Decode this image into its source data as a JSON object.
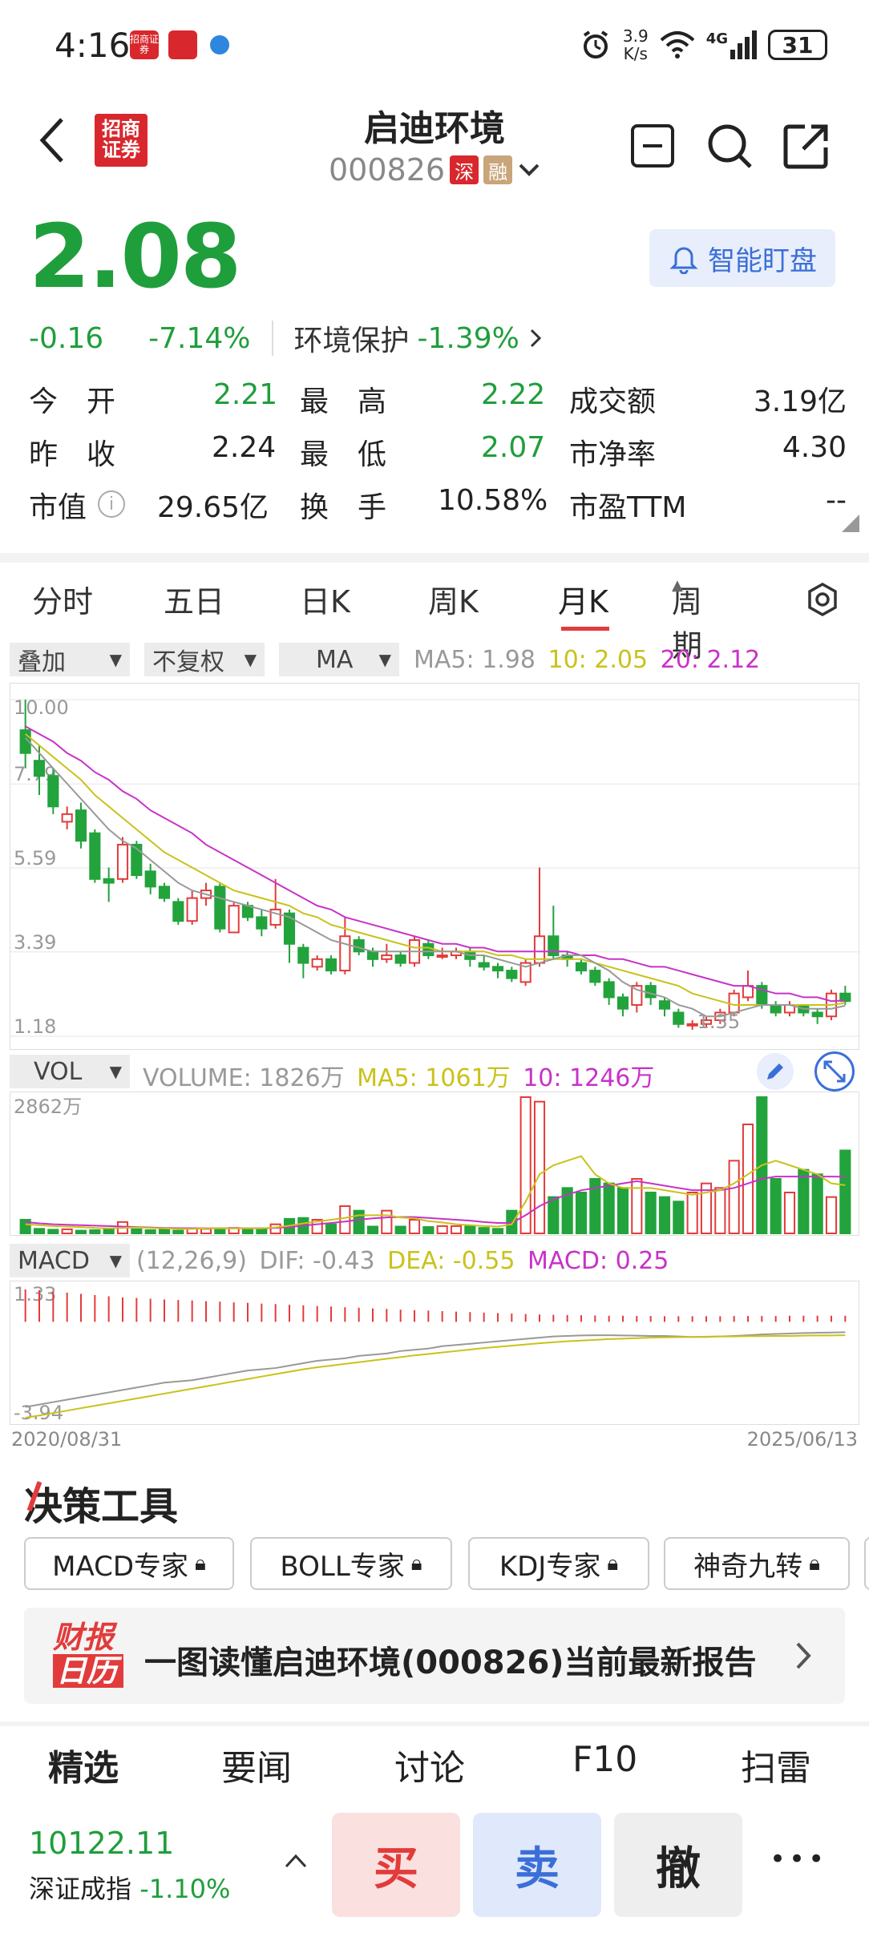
{
  "status_bar": {
    "time": "4:16",
    "app_icon_1": "招商证券",
    "app_icon_2": "app",
    "net_speed_top": "3.9",
    "net_speed_unit": "K/s",
    "network": "4G",
    "battery": "31"
  },
  "nav": {
    "title": "启迪环境",
    "code": "000826",
    "tag_sz": "深",
    "tag_margin": "融"
  },
  "quote": {
    "price": "2.08",
    "change": "-0.16",
    "change_pct": "-7.14%",
    "sector": "环境保护",
    "sector_pct": "-1.39%",
    "watch_label": "智能盯盘"
  },
  "stats": {
    "row1": {
      "l1": "今　开",
      "v1": "2.21",
      "l2": "最　高",
      "v2": "2.22",
      "l3": "成交额",
      "v3": "3.19亿"
    },
    "row2": {
      "l1": "昨　收",
      "v1": "2.24",
      "l2": "最　低",
      "v2": "2.07",
      "l3": "市净率",
      "v3": "4.30"
    },
    "row3": {
      "l1": "市值",
      "v1": "29.65亿",
      "l2": "换　手",
      "v2": "10.58%",
      "l3": "市盈TTM",
      "v3": "--"
    }
  },
  "tabs": [
    "分时",
    "五日",
    "日K",
    "周K",
    "月K",
    "周期"
  ],
  "active_tab": "月K",
  "chips": {
    "overlay": "叠加",
    "fq": "不复权",
    "ma": "MA",
    "vol": "VOL",
    "macd": "MACD"
  },
  "ma_legend": {
    "ma5": "MA5: 1.98",
    "ma10": "10: 2.05",
    "ma20": "20: 2.12"
  },
  "vol_legend": {
    "volume": "VOLUME: 1826万",
    "ma5": "MA5: 1061万",
    "ma10": "10: 1246万"
  },
  "macd_legend": {
    "params": "(12,26,9)",
    "dif": "DIF: -0.43",
    "dea": "DEA: -0.55",
    "macd": "MACD: 0.25"
  },
  "chart_data": {
    "type": "candlestick",
    "y_ticks": [
      "10.00",
      "7.79",
      "5.59",
      "3.39",
      "1.18"
    ],
    "ylim": [
      1.18,
      10.0
    ],
    "min_label": "1.35",
    "vol_max_label": "2862万",
    "macd_top_label": "1.33",
    "macd_bottom_label": "-3.94",
    "x_start": "2020/08/31",
    "x_end": "2025/06/13",
    "candles": [
      [
        9.2,
        8.6,
        10.0,
        8.2
      ],
      [
        8.4,
        8.0,
        8.8,
        7.5
      ],
      [
        8.0,
        7.2,
        8.2,
        7.0
      ],
      [
        6.8,
        7.0,
        7.2,
        6.6
      ],
      [
        7.1,
        6.3,
        7.3,
        6.1
      ],
      [
        6.5,
        5.3,
        6.6,
        5.2
      ],
      [
        5.3,
        5.2,
        5.6,
        4.7
      ],
      [
        5.3,
        6.2,
        6.4,
        5.2
      ],
      [
        6.2,
        5.4,
        6.3,
        5.3
      ],
      [
        5.5,
        5.1,
        5.7,
        4.9
      ],
      [
        5.1,
        4.8,
        5.2,
        4.7
      ],
      [
        4.7,
        4.2,
        4.8,
        4.1
      ],
      [
        4.2,
        4.8,
        5.0,
        4.1
      ],
      [
        4.8,
        5.0,
        5.2,
        4.6
      ],
      [
        5.1,
        4.0,
        5.2,
        3.9
      ],
      [
        3.9,
        4.6,
        4.7,
        3.9
      ],
      [
        4.6,
        4.3,
        4.7,
        4.2
      ],
      [
        4.3,
        4.0,
        4.5,
        3.8
      ],
      [
        4.1,
        4.5,
        5.3,
        4.0
      ],
      [
        4.4,
        3.6,
        4.5,
        3.1
      ],
      [
        3.5,
        3.1,
        3.6,
        2.7
      ],
      [
        3.0,
        3.2,
        3.3,
        2.9
      ],
      [
        3.2,
        2.9,
        3.3,
        2.8
      ],
      [
        2.9,
        3.8,
        4.3,
        2.8
      ],
      [
        3.7,
        3.4,
        3.8,
        3.3
      ],
      [
        3.4,
        3.2,
        3.5,
        3.0
      ],
      [
        3.2,
        3.3,
        3.6,
        3.1
      ],
      [
        3.3,
        3.1,
        3.4,
        3.0
      ],
      [
        3.1,
        3.7,
        3.8,
        3.0
      ],
      [
        3.6,
        3.3,
        3.7,
        3.2
      ],
      [
        3.3,
        3.3,
        3.5,
        3.2
      ],
      [
        3.3,
        3.4,
        3.5,
        3.2
      ],
      [
        3.4,
        3.2,
        3.5,
        3.0
      ],
      [
        3.1,
        3.0,
        3.3,
        2.9
      ],
      [
        3.0,
        2.9,
        3.1,
        2.7
      ],
      [
        2.9,
        2.7,
        3.0,
        2.6
      ],
      [
        2.6,
        3.1,
        3.2,
        2.5
      ],
      [
        3.1,
        3.8,
        5.6,
        3.0
      ],
      [
        3.8,
        3.3,
        4.6,
        3.2
      ],
      [
        3.3,
        3.2,
        3.4,
        3.0
      ],
      [
        3.1,
        2.9,
        3.2,
        2.8
      ],
      [
        2.9,
        2.6,
        3.0,
        2.5
      ],
      [
        2.6,
        2.2,
        2.7,
        2.0
      ],
      [
        2.2,
        1.9,
        2.3,
        1.7
      ],
      [
        2.0,
        2.5,
        2.6,
        1.8
      ],
      [
        2.5,
        2.2,
        2.6,
        2.0
      ],
      [
        2.1,
        1.9,
        2.2,
        1.7
      ],
      [
        1.8,
        1.5,
        1.9,
        1.4
      ],
      [
        1.5,
        1.5,
        1.6,
        1.35
      ],
      [
        1.5,
        1.6,
        1.7,
        1.4
      ],
      [
        1.6,
        1.8,
        1.9,
        1.5
      ],
      [
        1.8,
        2.3,
        2.4,
        1.7
      ],
      [
        2.2,
        2.5,
        2.9,
        2.1
      ],
      [
        2.5,
        2.0,
        2.6,
        1.9
      ],
      [
        2.0,
        1.8,
        2.1,
        1.7
      ],
      [
        1.8,
        2.0,
        2.1,
        1.7
      ],
      [
        2.0,
        1.8,
        2.0,
        1.7
      ],
      [
        1.8,
        1.7,
        1.9,
        1.5
      ],
      [
        1.7,
        2.3,
        2.4,
        1.6
      ],
      [
        2.3,
        2.1,
        2.5,
        2.0
      ]
    ],
    "ma5": [
      9.0,
      8.6,
      8.2,
      7.8,
      7.4,
      7.0,
      6.6,
      6.3,
      6.1,
      5.8,
      5.5,
      5.2,
      5.0,
      4.9,
      4.8,
      4.7,
      4.6,
      4.5,
      4.4,
      4.3,
      4.1,
      3.9,
      3.7,
      3.6,
      3.5,
      3.4,
      3.4,
      3.4,
      3.4,
      3.4,
      3.4,
      3.4,
      3.3,
      3.3,
      3.2,
      3.1,
      3.0,
      3.1,
      3.2,
      3.3,
      3.3,
      3.1,
      2.9,
      2.6,
      2.4,
      2.3,
      2.2,
      2.0,
      1.9,
      1.7,
      1.7,
      1.8,
      1.9,
      2.0,
      2.0,
      2.0,
      1.9,
      1.9,
      1.9,
      1.98
    ],
    "ma10": [
      9.1,
      8.8,
      8.5,
      8.2,
      7.9,
      7.5,
      7.2,
      6.9,
      6.6,
      6.3,
      6.0,
      5.8,
      5.6,
      5.4,
      5.2,
      5.0,
      4.9,
      4.8,
      4.7,
      4.6,
      4.4,
      4.3,
      4.1,
      4.0,
      3.9,
      3.8,
      3.7,
      3.6,
      3.5,
      3.5,
      3.4,
      3.4,
      3.4,
      3.4,
      3.3,
      3.3,
      3.2,
      3.2,
      3.2,
      3.2,
      3.2,
      3.1,
      3.0,
      2.9,
      2.8,
      2.7,
      2.6,
      2.5,
      2.3,
      2.2,
      2.1,
      2.0,
      2.0,
      2.0,
      2.0,
      2.0,
      2.0,
      2.0,
      2.0,
      2.05
    ],
    "ma20": [
      9.3,
      9.1,
      8.9,
      8.6,
      8.4,
      8.1,
      7.9,
      7.6,
      7.4,
      7.1,
      6.9,
      6.7,
      6.5,
      6.2,
      6.0,
      5.8,
      5.6,
      5.4,
      5.2,
      5.0,
      4.8,
      4.6,
      4.5,
      4.3,
      4.2,
      4.1,
      4.0,
      3.9,
      3.8,
      3.7,
      3.6,
      3.6,
      3.5,
      3.5,
      3.4,
      3.4,
      3.4,
      3.4,
      3.4,
      3.4,
      3.3,
      3.3,
      3.2,
      3.2,
      3.1,
      3.0,
      3.0,
      2.9,
      2.8,
      2.7,
      2.6,
      2.5,
      2.5,
      2.4,
      2.3,
      2.3,
      2.2,
      2.2,
      2.1,
      2.12
    ],
    "volume": [
      300,
      100,
      80,
      90,
      60,
      70,
      90,
      250,
      90,
      70,
      80,
      60,
      110,
      100,
      90,
      120,
      100,
      90,
      200,
      320,
      340,
      300,
      200,
      600,
      500,
      150,
      500,
      150,
      300,
      140,
      160,
      160,
      150,
      120,
      100,
      500,
      3000,
      2900,
      800,
      1000,
      900,
      1200,
      1100,
      1000,
      1200,
      900,
      800,
      700,
      900,
      1100,
      1000,
      1600,
      2400,
      3000,
      1200,
      900,
      1400,
      1300,
      800,
      1826
    ],
    "vol_ma5": [
      200,
      180,
      160,
      150,
      140,
      120,
      110,
      120,
      130,
      120,
      110,
      100,
      100,
      110,
      110,
      110,
      110,
      110,
      130,
      170,
      220,
      260,
      300,
      340,
      400,
      400,
      400,
      350,
      330,
      270,
      240,
      200,
      180,
      160,
      150,
      200,
      700,
      1300,
      1500,
      1600,
      1700,
      1300,
      1100,
      1000,
      1000,
      1000,
      950,
      900,
      850,
      900,
      950,
      1100,
      1300,
      1500,
      1600,
      1500,
      1400,
      1300,
      1100,
      1061
    ],
    "vol_ma10": [
      250,
      220,
      200,
      190,
      180,
      170,
      160,
      150,
      140,
      130,
      120,
      115,
      112,
      112,
      112,
      112,
      112,
      112,
      120,
      140,
      170,
      200,
      230,
      260,
      300,
      330,
      350,
      360,
      360,
      340,
      320,
      300,
      280,
      250,
      230,
      230,
      400,
      600,
      750,
      850,
      950,
      1000,
      1050,
      1100,
      1150,
      1100,
      1050,
      1000,
      950,
      950,
      950,
      1000,
      1100,
      1200,
      1250,
      1250,
      1250,
      1250,
      1250,
      1246
    ],
    "macd_hist": [
      1.33,
      1.3,
      1.25,
      1.2,
      1.15,
      1.1,
      1.05,
      1.0,
      0.98,
      0.95,
      0.92,
      0.9,
      0.88,
      0.85,
      0.83,
      0.8,
      0.78,
      0.75,
      0.73,
      0.7,
      0.68,
      0.65,
      0.63,
      0.6,
      0.58,
      0.55,
      0.53,
      0.5,
      0.48,
      0.46,
      0.44,
      0.42,
      0.4,
      0.38,
      0.36,
      0.34,
      0.32,
      0.3,
      0.29,
      0.28,
      0.27,
      0.26,
      0.25,
      0.25,
      0.24,
      0.24,
      0.23,
      0.23,
      0.23,
      0.23,
      0.23,
      0.24,
      0.24,
      0.24,
      0.24,
      0.25,
      0.25,
      0.25,
      0.25,
      0.25
    ],
    "dif": [
      -3.5,
      -3.4,
      -3.3,
      -3.2,
      -3.1,
      -3.0,
      -2.9,
      -2.8,
      -2.7,
      -2.6,
      -2.5,
      -2.45,
      -2.4,
      -2.3,
      -2.2,
      -2.1,
      -2.0,
      -1.95,
      -1.9,
      -1.8,
      -1.7,
      -1.6,
      -1.55,
      -1.5,
      -1.4,
      -1.35,
      -1.3,
      -1.2,
      -1.15,
      -1.1,
      -1.0,
      -0.95,
      -0.9,
      -0.85,
      -0.8,
      -0.75,
      -0.7,
      -0.65,
      -0.6,
      -0.58,
      -0.56,
      -0.55,
      -0.55,
      -0.56,
      -0.57,
      -0.58,
      -0.58,
      -0.6,
      -0.62,
      -0.62,
      -0.6,
      -0.58,
      -0.55,
      -0.52,
      -0.5,
      -0.48,
      -0.46,
      -0.45,
      -0.44,
      -0.43
    ],
    "dea": [
      -3.94,
      -3.85,
      -3.75,
      -3.65,
      -3.55,
      -3.45,
      -3.35,
      -3.25,
      -3.15,
      -3.05,
      -2.95,
      -2.85,
      -2.75,
      -2.65,
      -2.55,
      -2.45,
      -2.35,
      -2.25,
      -2.15,
      -2.05,
      -1.95,
      -1.87,
      -1.8,
      -1.73,
      -1.66,
      -1.59,
      -1.52,
      -1.45,
      -1.38,
      -1.32,
      -1.26,
      -1.2,
      -1.14,
      -1.08,
      -1.03,
      -0.98,
      -0.93,
      -0.88,
      -0.84,
      -0.8,
      -0.77,
      -0.74,
      -0.71,
      -0.69,
      -0.67,
      -0.65,
      -0.64,
      -0.63,
      -0.62,
      -0.61,
      -0.6,
      -0.6,
      -0.59,
      -0.59,
      -0.58,
      -0.58,
      -0.57,
      -0.56,
      -0.56,
      -0.55
    ],
    "colors": {
      "up": "#e23b3b",
      "down": "#22a33c",
      "ma5": "#999999",
      "ma10": "#c9c21b",
      "ma20": "#c832c8"
    }
  },
  "tools": {
    "title": "决策工具",
    "items": [
      "MACD专家",
      "BOLL专家",
      "KDJ专家",
      "神奇九转"
    ]
  },
  "report": {
    "logo_top": "财报",
    "logo_bottom": "日历",
    "text": "一图读懂启迪环境(000826)当前最新报告"
  },
  "bottom_tabs": [
    "精选",
    "要闻",
    "讨论",
    "F10",
    "扫雷"
  ],
  "index": {
    "value": "10122.11",
    "name": "深证成指",
    "pct": "-1.10%"
  },
  "trade": {
    "buy": "买",
    "sell": "卖",
    "cancel": "撤",
    "more": "•••"
  }
}
